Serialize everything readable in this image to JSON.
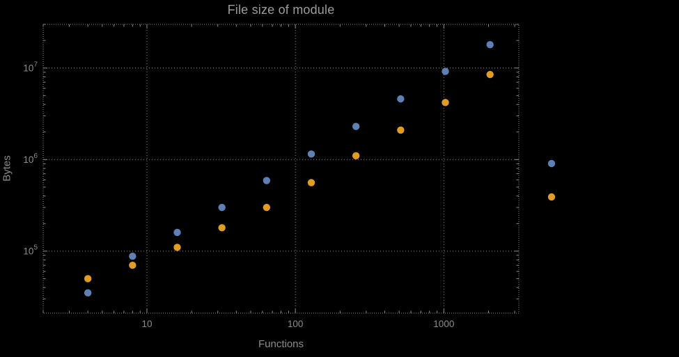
{
  "colors": {
    "background": "#000000",
    "frame": "#8c8c8c",
    "grid": "#8a8a8a",
    "text": "#8c8c8c",
    "title": "#9c9c9c",
    "series_blue": "#5e81b5",
    "series_orange": "#e19c24"
  },
  "chart_data": {
    "type": "scatter",
    "title": "File size of module",
    "xlabel": "Functions",
    "ylabel": "Bytes",
    "x_scale": "log",
    "y_scale": "log",
    "xlim": [
      2,
      3200
    ],
    "ylim": [
      21000,
      30000000
    ],
    "grid": "dotted major gridlines",
    "x_ticks": [
      10,
      100,
      1000
    ],
    "x_tick_labels": [
      "10",
      "100",
      "1000"
    ],
    "y_ticks": [
      100000,
      1000000,
      10000000
    ],
    "y_tick_exponents": [
      "5",
      "6",
      "7"
    ],
    "series": [
      {
        "color": "#5e81b5",
        "x": [
          4,
          8,
          16,
          32,
          64,
          128,
          256,
          512,
          1024,
          2048
        ],
        "y": [
          35000,
          88000,
          160000,
          300000,
          590000,
          1150000,
          2300000,
          4600000,
          9200000,
          18000000
        ]
      },
      {
        "color": "#e19c24",
        "x": [
          4,
          8,
          16,
          32,
          64,
          128,
          256,
          512,
          1024,
          2048
        ],
        "y": [
          50000,
          70000,
          110000,
          180000,
          300000,
          560000,
          1100000,
          2100000,
          4200000,
          8500000
        ]
      }
    ],
    "legend": {
      "position": "right-of-frame",
      "markers": [
        {
          "color": "#5e81b5",
          "label": ""
        },
        {
          "color": "#e19c24",
          "label": ""
        }
      ]
    }
  }
}
